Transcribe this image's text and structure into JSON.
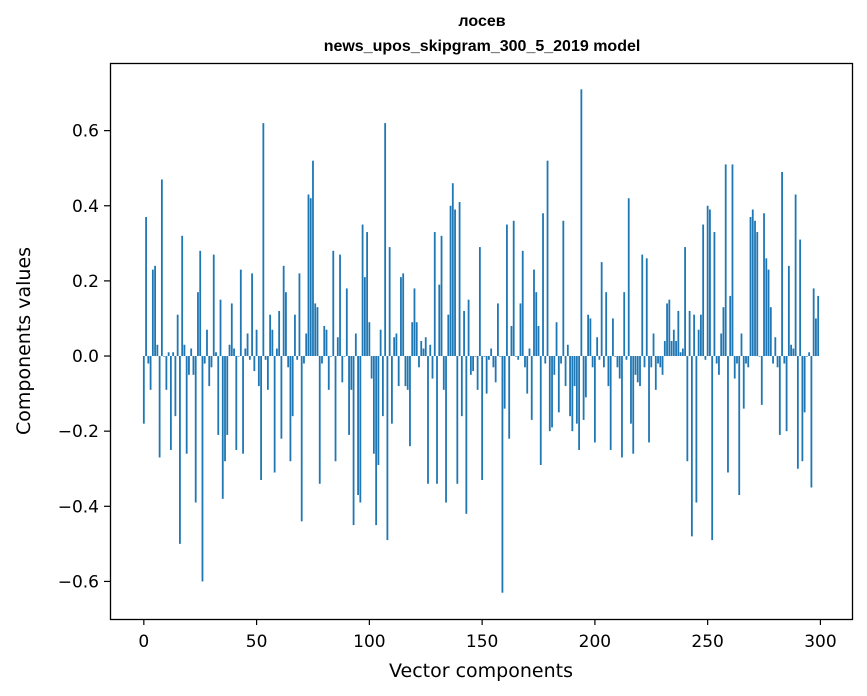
{
  "chart_data": {
    "type": "bar",
    "title": "лосев",
    "subtitle": "news_upos_skipgram_300_5_2019 model",
    "xlabel": "Vector components",
    "ylabel": "Components values",
    "xlim": [
      -15,
      314
    ],
    "ylim": [
      -0.7,
      0.78
    ],
    "xticks": [
      0,
      50,
      100,
      150,
      200,
      250,
      300
    ],
    "xtick_labels": [
      "0",
      "50",
      "100",
      "150",
      "200",
      "250",
      "300"
    ],
    "yticks": [
      -0.6,
      -0.4,
      -0.2,
      0.0,
      0.2,
      0.4,
      0.6
    ],
    "ytick_labels": [
      "−0.6",
      "−0.4",
      "−0.2",
      "0.0",
      "0.2",
      "0.4",
      "0.6"
    ],
    "grid": false,
    "bar_color": "#1f77b4",
    "x_start": 0,
    "values": [
      -0.18,
      0.37,
      -0.02,
      -0.09,
      0.23,
      0.24,
      0.03,
      -0.27,
      0.47,
      0.0,
      -0.09,
      0.01,
      -0.25,
      0.01,
      -0.16,
      0.11,
      -0.5,
      0.32,
      0.03,
      -0.26,
      -0.05,
      0.02,
      -0.05,
      -0.39,
      0.17,
      0.28,
      -0.6,
      -0.02,
      0.07,
      -0.08,
      -0.03,
      0.27,
      0.01,
      -0.21,
      0.15,
      -0.38,
      -0.28,
      -0.21,
      0.03,
      0.14,
      0.02,
      -0.25,
      0.0,
      0.23,
      -0.26,
      0.02,
      0.06,
      -0.01,
      0.22,
      -0.04,
      0.07,
      -0.08,
      -0.33,
      0.62,
      -0.01,
      -0.09,
      0.11,
      0.07,
      -0.31,
      0.02,
      0.12,
      -0.22,
      0.24,
      0.17,
      -0.03,
      -0.28,
      -0.16,
      0.11,
      -0.01,
      0.22,
      -0.44,
      -0.02,
      0.06,
      0.43,
      0.42,
      0.52,
      0.14,
      0.13,
      -0.34,
      -0.02,
      0.08,
      0.07,
      -0.09,
      0.0,
      0.28,
      -0.28,
      0.05,
      0.27,
      -0.07,
      0.0,
      0.18,
      -0.21,
      -0.09,
      -0.45,
      0.06,
      -0.37,
      -0.39,
      0.35,
      0.21,
      0.33,
      0.09,
      -0.06,
      -0.26,
      -0.45,
      -0.29,
      0.07,
      -0.16,
      0.62,
      -0.49,
      0.29,
      -0.18,
      0.05,
      0.06,
      -0.08,
      0.21,
      0.22,
      -0.08,
      -0.09,
      -0.24,
      0.09,
      0.18,
      0.09,
      -0.03,
      0.04,
      0.02,
      0.05,
      -0.34,
      0.03,
      -0.06,
      0.33,
      -0.34,
      0.19,
      0.32,
      -0.09,
      -0.39,
      0.11,
      0.4,
      0.46,
      0.39,
      -0.34,
      0.41,
      -0.16,
      0.12,
      -0.42,
      0.15,
      -0.05,
      -0.04,
      0.0,
      -0.09,
      0.29,
      -0.33,
      0.0,
      -0.1,
      -0.01,
      0.02,
      -0.03,
      -0.07,
      0.14,
      0.0,
      -0.63,
      -0.14,
      0.35,
      -0.22,
      0.08,
      0.36,
      0.0,
      -0.01,
      0.14,
      0.28,
      -0.03,
      -0.1,
      0.02,
      -0.17,
      0.23,
      0.17,
      0.08,
      -0.29,
      0.38,
      -0.02,
      0.52,
      -0.2,
      -0.19,
      -0.05,
      0.09,
      -0.15,
      -0.02,
      0.36,
      -0.08,
      0.03,
      -0.16,
      -0.2,
      -0.08,
      -0.18,
      -0.25,
      0.71,
      -0.17,
      -0.11,
      0.11,
      0.1,
      -0.03,
      -0.23,
      0.05,
      -0.01,
      0.25,
      -0.03,
      0.17,
      -0.08,
      -0.25,
      0.1,
      0.0,
      -0.03,
      -0.06,
      -0.27,
      0.17,
      -0.01,
      0.42,
      -0.18,
      -0.26,
      -0.05,
      -0.07,
      -0.08,
      0.27,
      -0.03,
      0.26,
      -0.23,
      -0.03,
      0.06,
      -0.09,
      -0.02,
      -0.03,
      -0.05,
      0.04,
      0.14,
      0.15,
      0.04,
      0.07,
      0.04,
      0.12,
      0.01,
      0.02,
      0.29,
      -0.28,
      0.12,
      -0.48,
      0.11,
      -0.39,
      0.07,
      0.11,
      0.35,
      -0.01,
      0.4,
      0.39,
      -0.49,
      0.33,
      -0.02,
      -0.05,
      0.06,
      0.13,
      0.51,
      -0.31,
      0.16,
      0.51,
      -0.06,
      -0.02,
      -0.37,
      0.06,
      -0.14,
      -0.02,
      -0.03,
      0.37,
      0.39,
      0.36,
      0.33,
      0.0,
      -0.13,
      0.38,
      0.26,
      0.23,
      0.13,
      -0.02,
      0.05,
      -0.03,
      -0.21,
      0.49,
      -0.02,
      -0.2,
      0.24,
      0.03,
      0.02,
      0.43,
      -0.3,
      0.31,
      -0.28,
      -0.15,
      0.0,
      0.01,
      -0.35,
      0.18,
      0.1,
      0.16
    ]
  }
}
